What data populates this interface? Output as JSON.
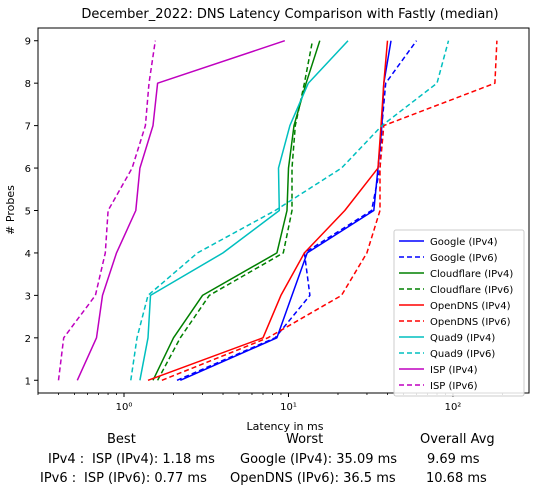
{
  "chart_data": {
    "type": "line",
    "title": "December_2022: DNS Latency Comparison with Fastly (median)",
    "xlabel": "Latency in ms",
    "ylabel": "# Probes",
    "x_scale": "log",
    "xlim": [
      0.3,
      290
    ],
    "ylim": [
      0.7,
      9.3
    ],
    "yticks": [
      1,
      2,
      3,
      4,
      5,
      6,
      7,
      8,
      9
    ],
    "xticks_major": [
      {
        "value": 1,
        "label": "10⁰"
      },
      {
        "value": 10,
        "label": "10¹"
      },
      {
        "value": 100,
        "label": "10²"
      }
    ],
    "grid": false,
    "legend_position": "lower-right",
    "series": [
      {
        "name": "Google (IPv4)",
        "color": "#0000ff",
        "dash": "solid",
        "points": [
          [
            2.2,
            1
          ],
          [
            8.5,
            2
          ],
          [
            10.5,
            3
          ],
          [
            13,
            4
          ],
          [
            33,
            5
          ],
          [
            35,
            6
          ],
          [
            37,
            7
          ],
          [
            38,
            8
          ],
          [
            42,
            9
          ]
        ]
      },
      {
        "name": "Google (IPv6)",
        "color": "#0000ff",
        "dash": "dashed",
        "points": [
          [
            2.1,
            1
          ],
          [
            8.3,
            2
          ],
          [
            13.5,
            3
          ],
          [
            12.5,
            4
          ],
          [
            32,
            5
          ],
          [
            36,
            6
          ],
          [
            37,
            7
          ],
          [
            39,
            8
          ],
          [
            60,
            9
          ]
        ]
      },
      {
        "name": "Cloudflare (IPv4)",
        "color": "#008000",
        "dash": "solid",
        "points": [
          [
            1.5,
            1
          ],
          [
            2,
            2
          ],
          [
            3,
            3
          ],
          [
            8.5,
            4
          ],
          [
            9.8,
            5
          ],
          [
            10,
            6
          ],
          [
            10.8,
            7
          ],
          [
            12.8,
            8
          ],
          [
            15.5,
            9
          ]
        ]
      },
      {
        "name": "Cloudflare (IPv6)",
        "color": "#008000",
        "dash": "dashed",
        "points": [
          [
            1.6,
            1
          ],
          [
            2.2,
            2
          ],
          [
            3.3,
            3
          ],
          [
            9.3,
            4
          ],
          [
            10.5,
            5
          ],
          [
            10.5,
            6
          ],
          [
            11,
            7
          ],
          [
            12.5,
            8
          ],
          [
            14,
            9
          ]
        ]
      },
      {
        "name": "OpenDNS (IPv4)",
        "color": "#ff0000",
        "dash": "solid",
        "points": [
          [
            1.4,
            1
          ],
          [
            7,
            2
          ],
          [
            9,
            3
          ],
          [
            12.5,
            4
          ],
          [
            22,
            5
          ],
          [
            35,
            6
          ],
          [
            36.5,
            7
          ],
          [
            38,
            8
          ],
          [
            40,
            9
          ]
        ]
      },
      {
        "name": "OpenDNS (IPv6)",
        "color": "#ff0000",
        "dash": "dashed",
        "points": [
          [
            1.7,
            1
          ],
          [
            7.5,
            2
          ],
          [
            21,
            3
          ],
          [
            30,
            4
          ],
          [
            36,
            5
          ],
          [
            36,
            6
          ],
          [
            38,
            7
          ],
          [
            180,
            8
          ],
          [
            185,
            9
          ]
        ]
      },
      {
        "name": "Quad9 (IPv4)",
        "color": "#00bfbf",
        "dash": "solid",
        "points": [
          [
            1.25,
            1
          ],
          [
            1.4,
            2
          ],
          [
            1.45,
            3
          ],
          [
            4,
            4
          ],
          [
            8.8,
            5
          ],
          [
            8.7,
            6
          ],
          [
            10.2,
            7
          ],
          [
            13.2,
            8
          ],
          [
            23,
            9
          ]
        ]
      },
      {
        "name": "Quad9 (IPv6)",
        "color": "#00bfbf",
        "dash": "dashed",
        "points": [
          [
            1.1,
            1
          ],
          [
            1.2,
            2
          ],
          [
            1.4,
            3
          ],
          [
            2.8,
            4
          ],
          [
            8.3,
            5
          ],
          [
            21,
            6
          ],
          [
            37,
            7
          ],
          [
            80,
            8
          ],
          [
            94,
            9
          ]
        ]
      },
      {
        "name": "ISP (IPv4)",
        "color": "#bf00bf",
        "dash": "solid",
        "points": [
          [
            0.52,
            1
          ],
          [
            0.68,
            2
          ],
          [
            0.74,
            3
          ],
          [
            0.9,
            4
          ],
          [
            1.18,
            5
          ],
          [
            1.25,
            6
          ],
          [
            1.5,
            7
          ],
          [
            1.6,
            8
          ],
          [
            9.5,
            9
          ]
        ]
      },
      {
        "name": "ISP (IPv6)",
        "color": "#bf00bf",
        "dash": "dashed",
        "points": [
          [
            0.4,
            1
          ],
          [
            0.43,
            2
          ],
          [
            0.67,
            3
          ],
          [
            0.77,
            4
          ],
          [
            0.8,
            5
          ],
          [
            1.12,
            6
          ],
          [
            1.35,
            7
          ],
          [
            1.42,
            8
          ],
          [
            1.55,
            9
          ]
        ]
      }
    ]
  },
  "summary": {
    "headers": {
      "best": "Best",
      "worst": "Worst",
      "avg": "Overall Avg"
    },
    "rows": [
      {
        "label": "IPv4 :",
        "best": "ISP (IPv4): 1.18 ms",
        "worst": "Google (IPv4): 35.09 ms",
        "avg": "9.69 ms"
      },
      {
        "label": "IPv6 :",
        "best": "ISP (IPv6): 0.77 ms",
        "worst": "OpenDNS (IPv6): 36.5 ms",
        "avg": "10.68 ms"
      }
    ]
  }
}
